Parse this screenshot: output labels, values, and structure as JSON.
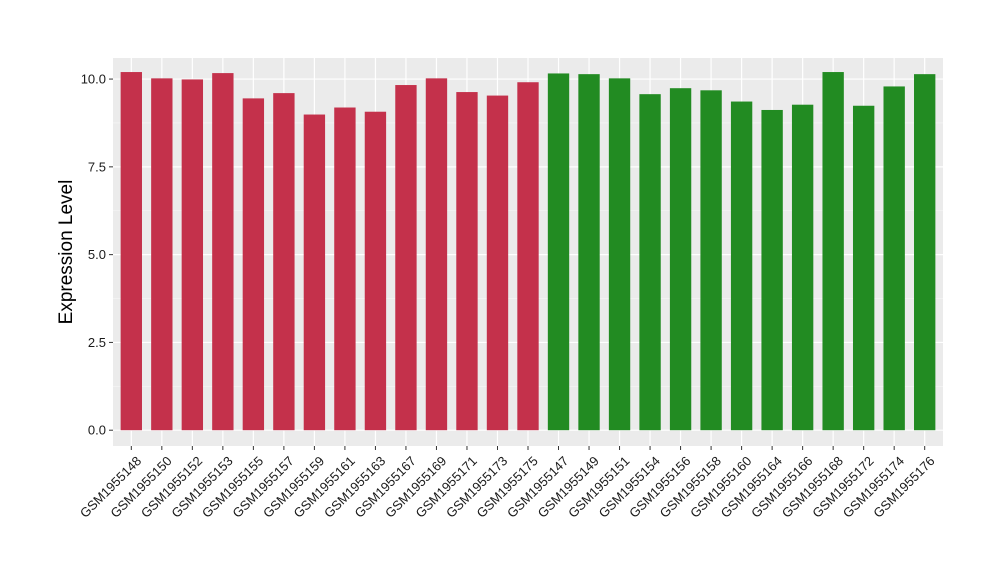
{
  "chart_data": {
    "type": "bar",
    "title": "",
    "xlabel": "",
    "ylabel": "Expression Level",
    "ylim": [
      -0.45,
      10.6
    ],
    "yticks": [
      0.0,
      2.5,
      5.0,
      7.5,
      10.0
    ],
    "ytick_labels": [
      "0.0",
      "2.5",
      "5.0",
      "7.5",
      "10.0"
    ],
    "grid": true,
    "legend": "none",
    "colors": {
      "group_a": "#C4314B",
      "group_b": "#228B22",
      "panel_bg": "#EBEBEB",
      "grid_major": "#FFFFFF",
      "tick_text": "#1A1A1A"
    },
    "categories": [
      "GSM1955148",
      "GSM1955150",
      "GSM1955152",
      "GSM1955153",
      "GSM1955155",
      "GSM1955157",
      "GSM1955159",
      "GSM1955161",
      "GSM1955163",
      "GSM1955167",
      "GSM1955169",
      "GSM1955171",
      "GSM1955173",
      "GSM1955175",
      "GSM1955147",
      "GSM1955149",
      "GSM1955151",
      "GSM1955154",
      "GSM1955156",
      "GSM1955158",
      "GSM1955160",
      "GSM1955164",
      "GSM1955166",
      "GSM1955168",
      "GSM1955172",
      "GSM1955174",
      "GSM1955176"
    ],
    "values": [
      10.2,
      10.02,
      9.99,
      10.17,
      9.45,
      9.6,
      8.99,
      9.19,
      9.07,
      9.83,
      10.02,
      9.63,
      9.53,
      9.91,
      10.16,
      10.14,
      10.02,
      9.57,
      9.74,
      9.68,
      9.36,
      9.12,
      9.27,
      10.2,
      9.24,
      9.79,
      10.14
    ],
    "bar_colors": [
      "#C4314B",
      "#C4314B",
      "#C4314B",
      "#C4314B",
      "#C4314B",
      "#C4314B",
      "#C4314B",
      "#C4314B",
      "#C4314B",
      "#C4314B",
      "#C4314B",
      "#C4314B",
      "#C4314B",
      "#C4314B",
      "#228B22",
      "#228B22",
      "#228B22",
      "#228B22",
      "#228B22",
      "#228B22",
      "#228B22",
      "#228B22",
      "#228B22",
      "#228B22",
      "#228B22",
      "#228B22",
      "#228B22"
    ]
  }
}
